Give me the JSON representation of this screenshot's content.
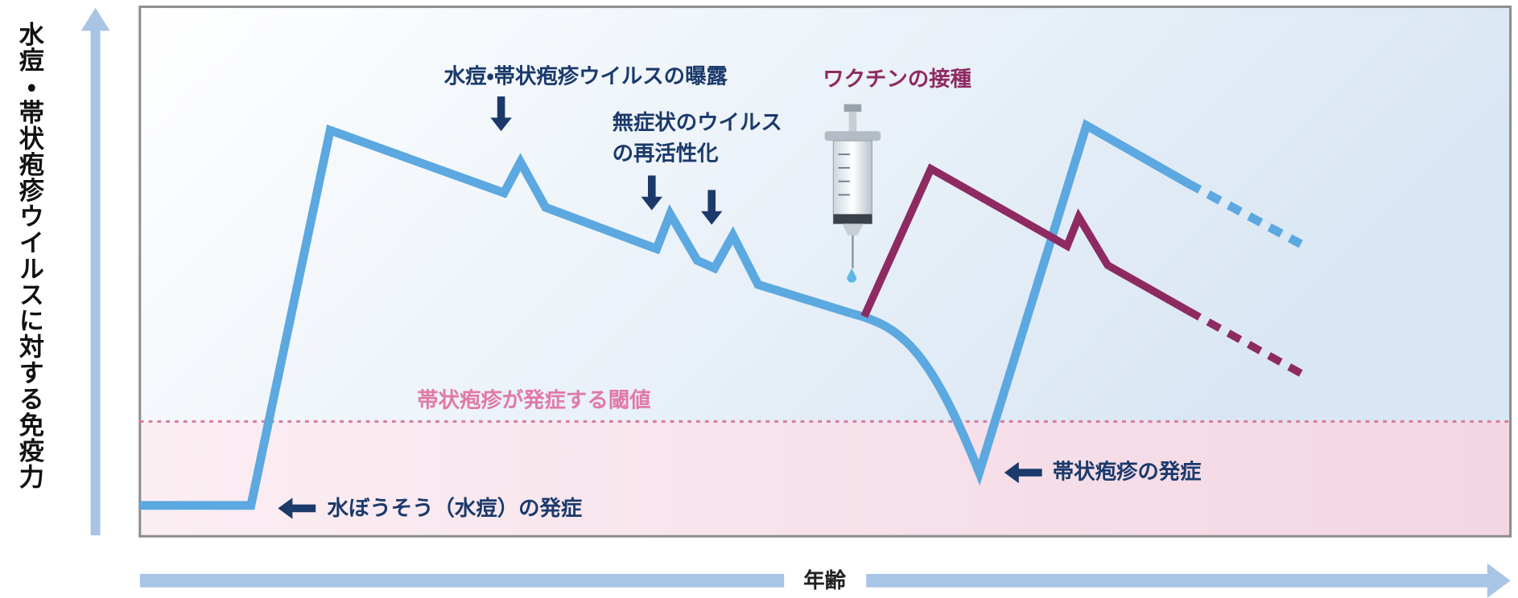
{
  "y_axis_label": "水痘・帯状疱疹ウイルスに対する免疫力",
  "x_axis_label": "年齢",
  "annotations": {
    "exposure": "水痘・帯状疱疹ウイルスの曝露",
    "reactivation": [
      "無症状のウイルス",
      "の再活性化"
    ],
    "vaccination": "ワクチンの接種",
    "threshold": "帯状疱疹が発症する閾値",
    "chickenpox_onset": "水ぼうそう（水痘）の発症",
    "shingles_onset": "帯状疱疹の発症"
  }
}
